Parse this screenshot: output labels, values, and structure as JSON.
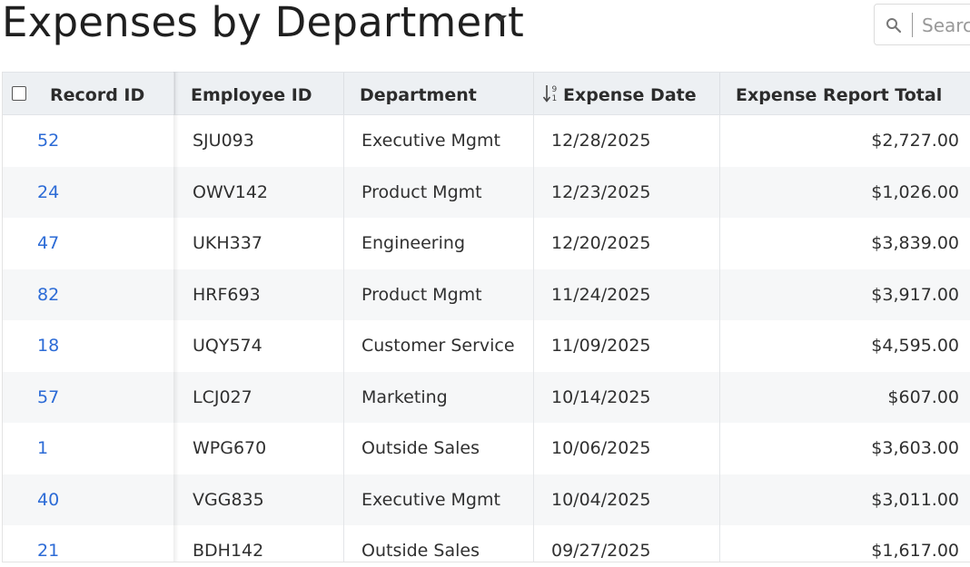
{
  "header": {
    "title": "Expenses by Department",
    "search_placeholder": "Search"
  },
  "table": {
    "columns": [
      {
        "label": "Record ID"
      },
      {
        "label": "Employee ID"
      },
      {
        "label": "Department"
      },
      {
        "label": "Expense Date"
      },
      {
        "label": "Expense Report Total"
      }
    ],
    "rows": [
      {
        "record_id": "52",
        "employee_id": "SJU093",
        "department": "Executive Mgmt",
        "date": "12/28/2025",
        "total": "$2,727.00"
      },
      {
        "record_id": "24",
        "employee_id": "OWV142",
        "department": "Product Mgmt",
        "date": "12/23/2025",
        "total": "$1,026.00"
      },
      {
        "record_id": "47",
        "employee_id": "UKH337",
        "department": "Engineering",
        "date": "12/20/2025",
        "total": "$3,839.00"
      },
      {
        "record_id": "82",
        "employee_id": "HRF693",
        "department": "Product Mgmt",
        "date": "11/24/2025",
        "total": "$3,917.00"
      },
      {
        "record_id": "18",
        "employee_id": "UQY574",
        "department": "Customer Service",
        "date": "11/09/2025",
        "total": "$4,595.00"
      },
      {
        "record_id": "57",
        "employee_id": "LCJ027",
        "department": "Marketing",
        "date": "10/14/2025",
        "total": "$607.00"
      },
      {
        "record_id": "1",
        "employee_id": "WPG670",
        "department": "Outside Sales",
        "date": "10/06/2025",
        "total": "$3,603.00"
      },
      {
        "record_id": "40",
        "employee_id": "VGG835",
        "department": "Executive Mgmt",
        "date": "10/04/2025",
        "total": "$3,011.00"
      },
      {
        "record_id": "21",
        "employee_id": "BDH142",
        "department": "Outside Sales",
        "date": "09/27/2025",
        "total": "$1,617.00"
      }
    ]
  },
  "colors": {
    "link": "#2c6bd6",
    "header_bg": "#edf0f3",
    "alt_row_bg": "#f6f7f8"
  }
}
